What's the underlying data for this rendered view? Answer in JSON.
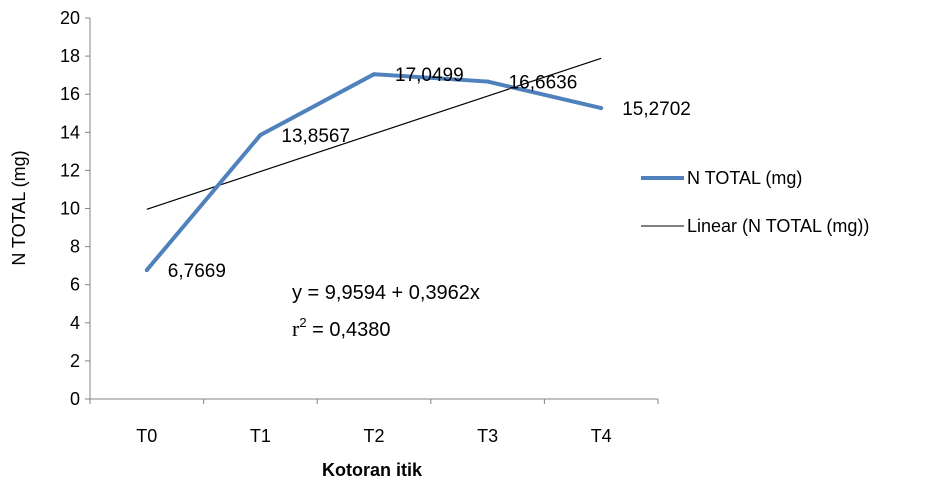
{
  "chart_data": {
    "type": "line",
    "categories": [
      "T0",
      "T1",
      "T2",
      "T3",
      "T4"
    ],
    "series": [
      {
        "name": "N TOTAL (mg)",
        "values": [
          6.7669,
          13.8567,
          17.0499,
          16.6636,
          15.2702
        ],
        "labels": [
          "6,7669",
          "13,8567",
          "17,0499",
          "16,6636",
          "15,2702"
        ],
        "color": "#4f81bd"
      }
    ],
    "trendline": {
      "name": "Linear (N TOTAL (mg))",
      "intercept": 9.9594,
      "slope": 0.3962,
      "color": "#000000"
    },
    "annotations": {
      "equation": "y = 9,9594 + 0,3962x",
      "r2_symbol": "r",
      "r2_exp": "2",
      "r2_value": " = 0,4380"
    },
    "title": "",
    "xlabel": "Kotoran itik",
    "ylabel": "N TOTAL (mg)",
    "ylim": [
      0,
      20
    ],
    "yticks": [
      "0",
      "2",
      "4",
      "6",
      "8",
      "10",
      "12",
      "14",
      "16",
      "18",
      "20"
    ],
    "grid": false,
    "legend": "right"
  }
}
